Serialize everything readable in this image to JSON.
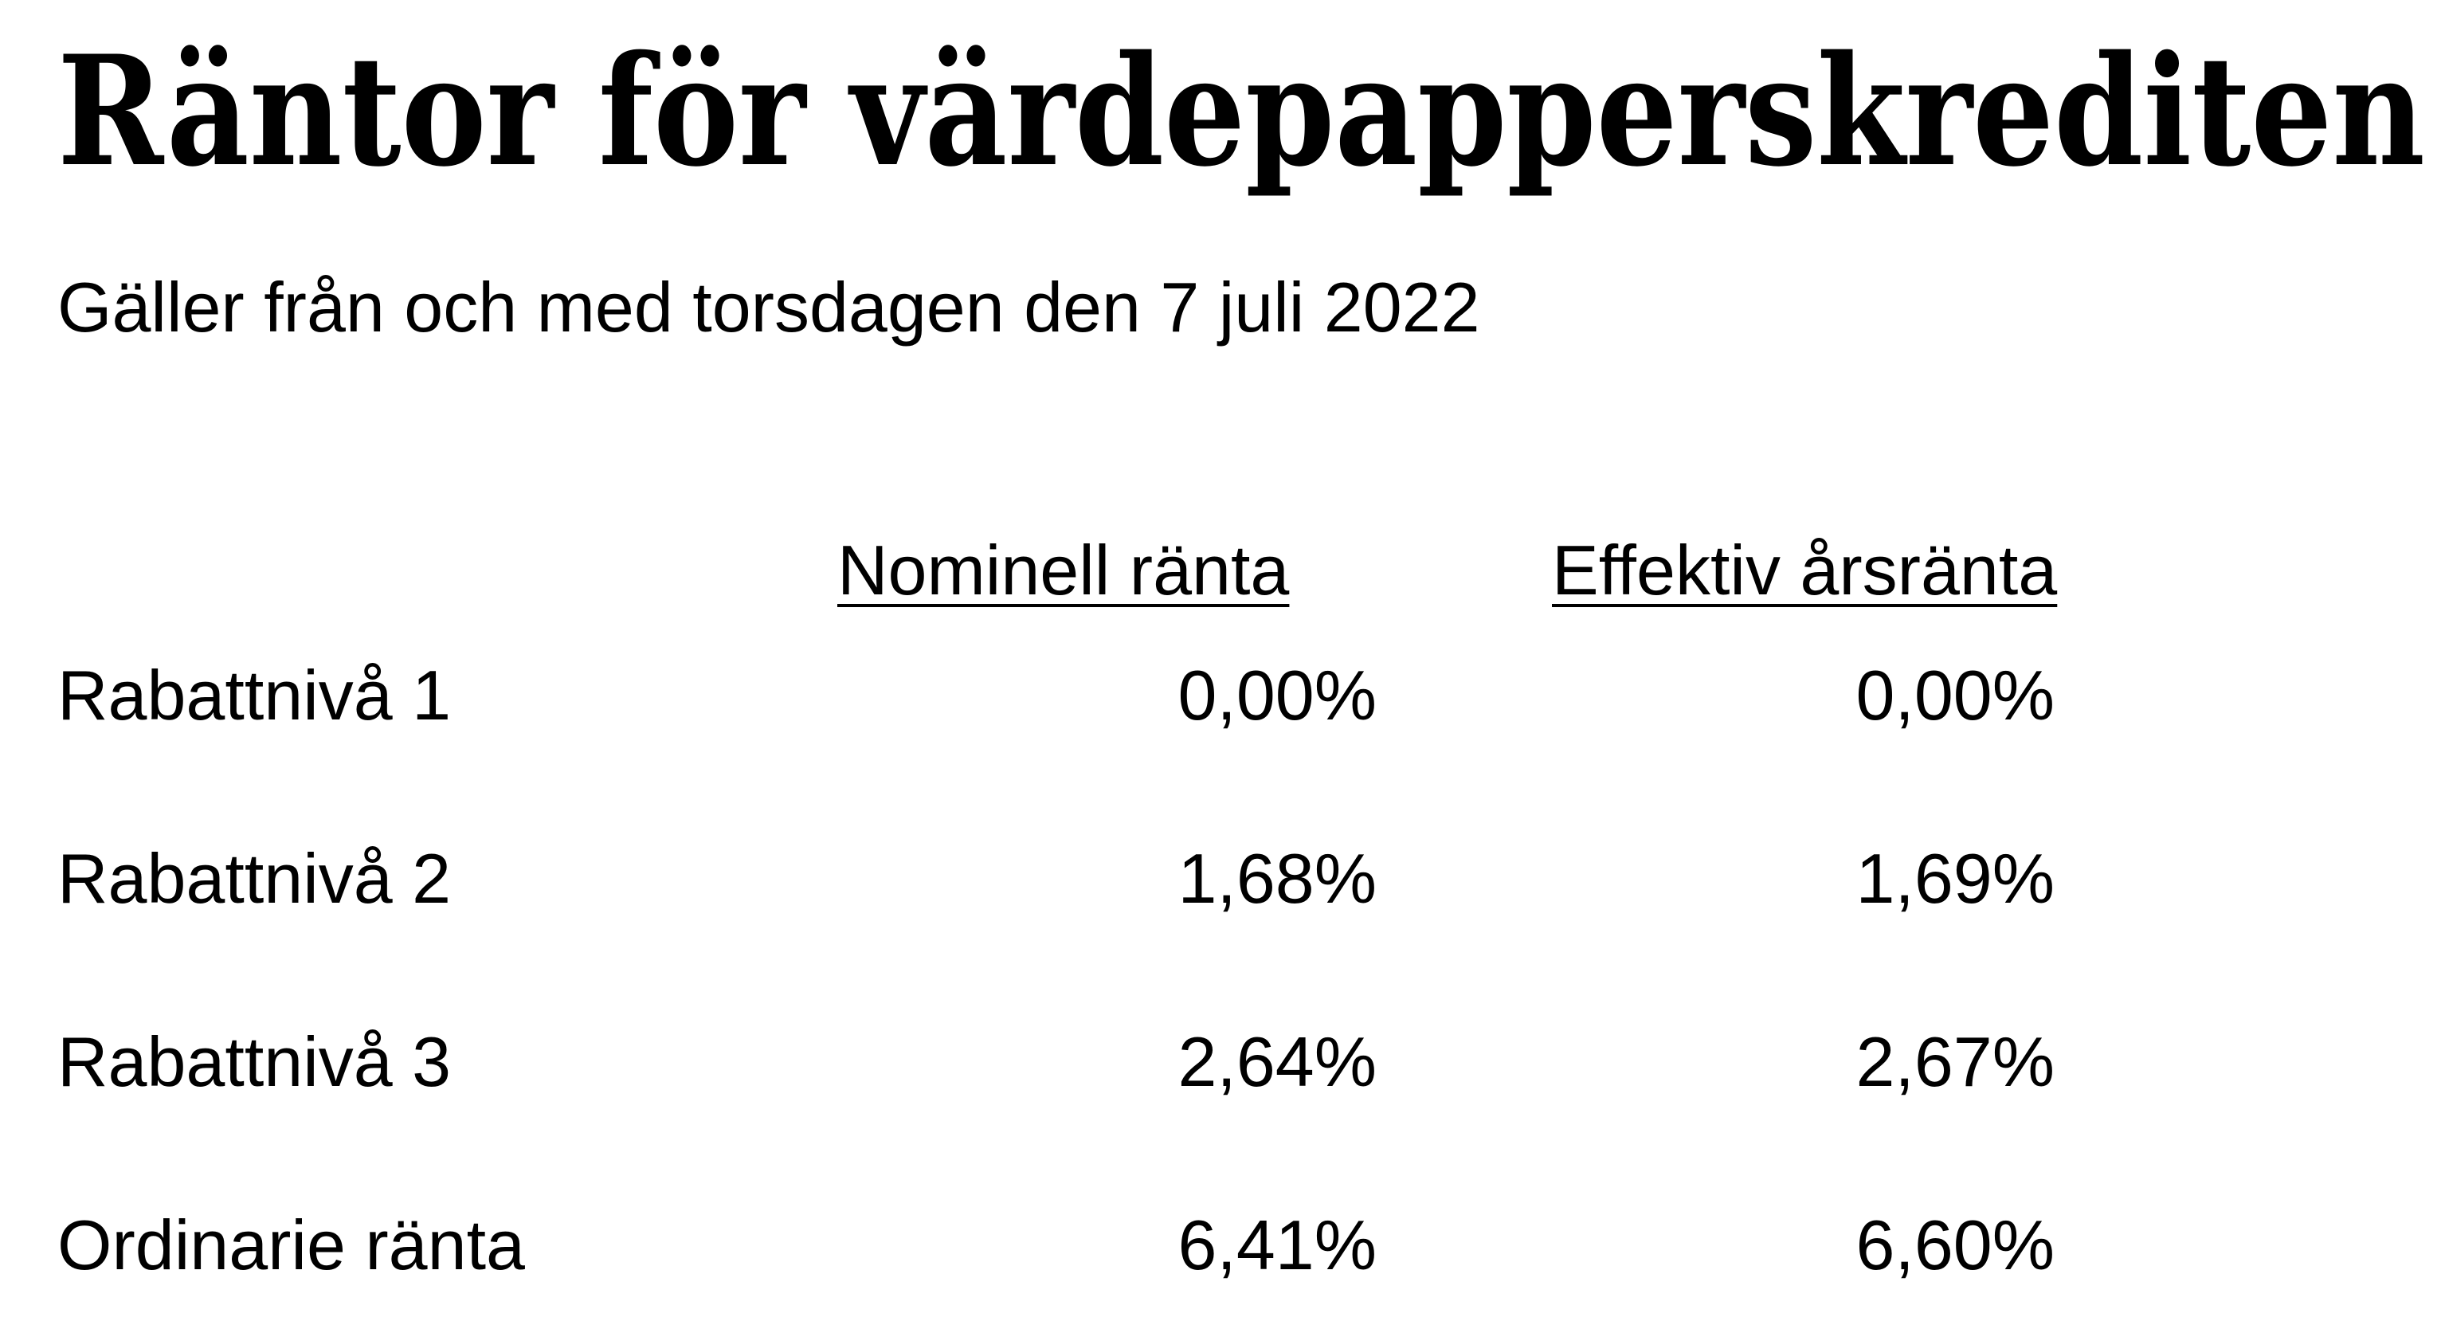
{
  "title": "Räntor för värdepapperskrediten",
  "subtitle": "Gäller från och med torsdagen den 7 juli 2022",
  "table": {
    "columns": [
      "Nominell ränta",
      "Effektiv årsränta"
    ],
    "rows": [
      [
        "Rabattnivå 1",
        "0,00%",
        "0,00%"
      ],
      [
        "Rabattnivå 2",
        "1,68%",
        "1,69%"
      ],
      [
        "Rabattnivå 3",
        "2,64%",
        "2,67%"
      ],
      [
        "Ordinarie ränta",
        "6,41%",
        "6,60%"
      ]
    ]
  }
}
